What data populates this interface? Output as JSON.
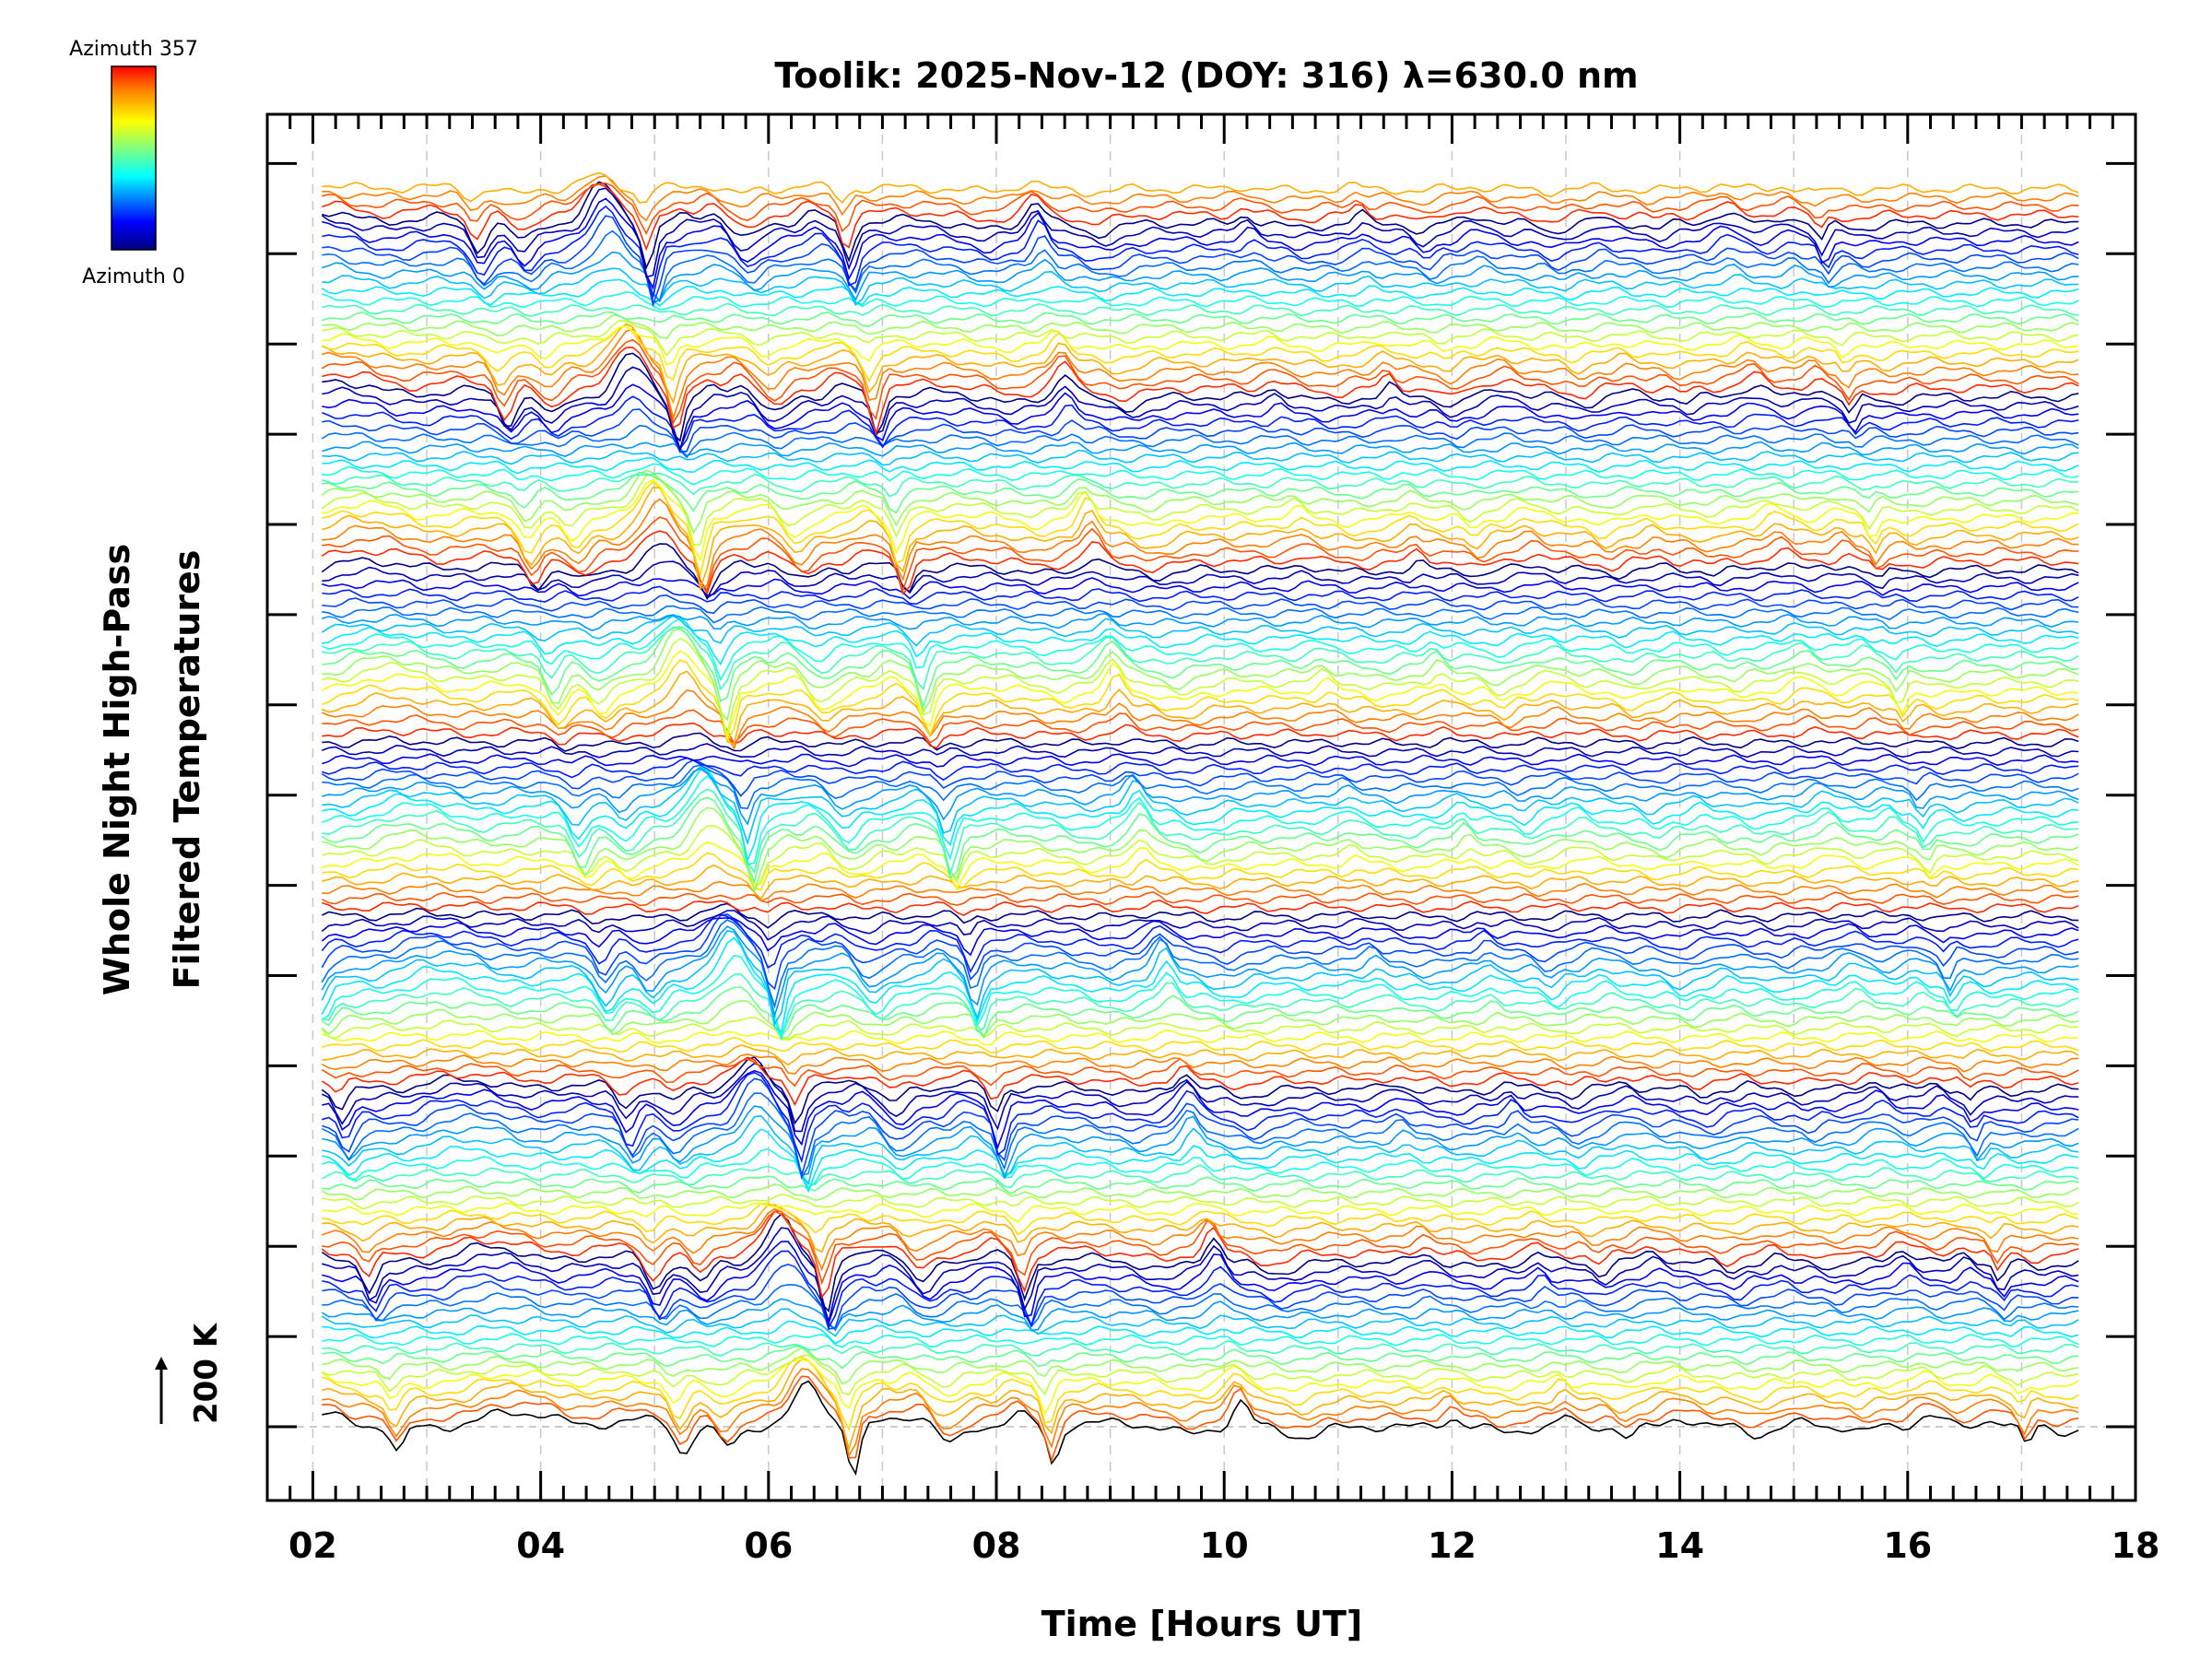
{
  "chart_data": {
    "type": "line",
    "title": "Toolik: 2025-Nov-12 (DOY: 316) λ=630.0 nm",
    "xlabel": "Time [Hours UT]",
    "ylabel_line1": "Whole Night High-Pass",
    "ylabel_line2": "Filtered Temperatures",
    "xlim": [
      1.6,
      18
    ],
    "x_tick_labels": [
      "02",
      "04",
      "06",
      "08",
      "10",
      "12",
      "14",
      "16",
      "18"
    ],
    "x_tick_values": [
      2,
      4,
      6,
      8,
      10,
      12,
      14,
      16,
      18
    ],
    "time_range_hours": [
      2.08,
      17.5
    ],
    "scale_bar_label": "200 K",
    "colorbar": {
      "top_label": "Azimuth 357",
      "bottom_label": "Azimuth 0",
      "colors": [
        "#000080",
        "#0000ff",
        "#00ffff",
        "#80ff80",
        "#ffff00",
        "#ff8000",
        "#ff0000"
      ]
    },
    "num_traces": 144,
    "trace_group_size": 20,
    "reference_trace_color": "#000000",
    "features": [
      {
        "time": 2.75,
        "label": "dip"
      },
      {
        "time": 5.25,
        "label": "dip"
      },
      {
        "time": 6.4,
        "label": "peak"
      },
      {
        "time": 6.75,
        "label": "dip"
      },
      {
        "time": 8.5,
        "label": "dip"
      },
      {
        "time": 10.2,
        "label": "peak"
      },
      {
        "time": 17.0,
        "label": "dip"
      }
    ]
  }
}
